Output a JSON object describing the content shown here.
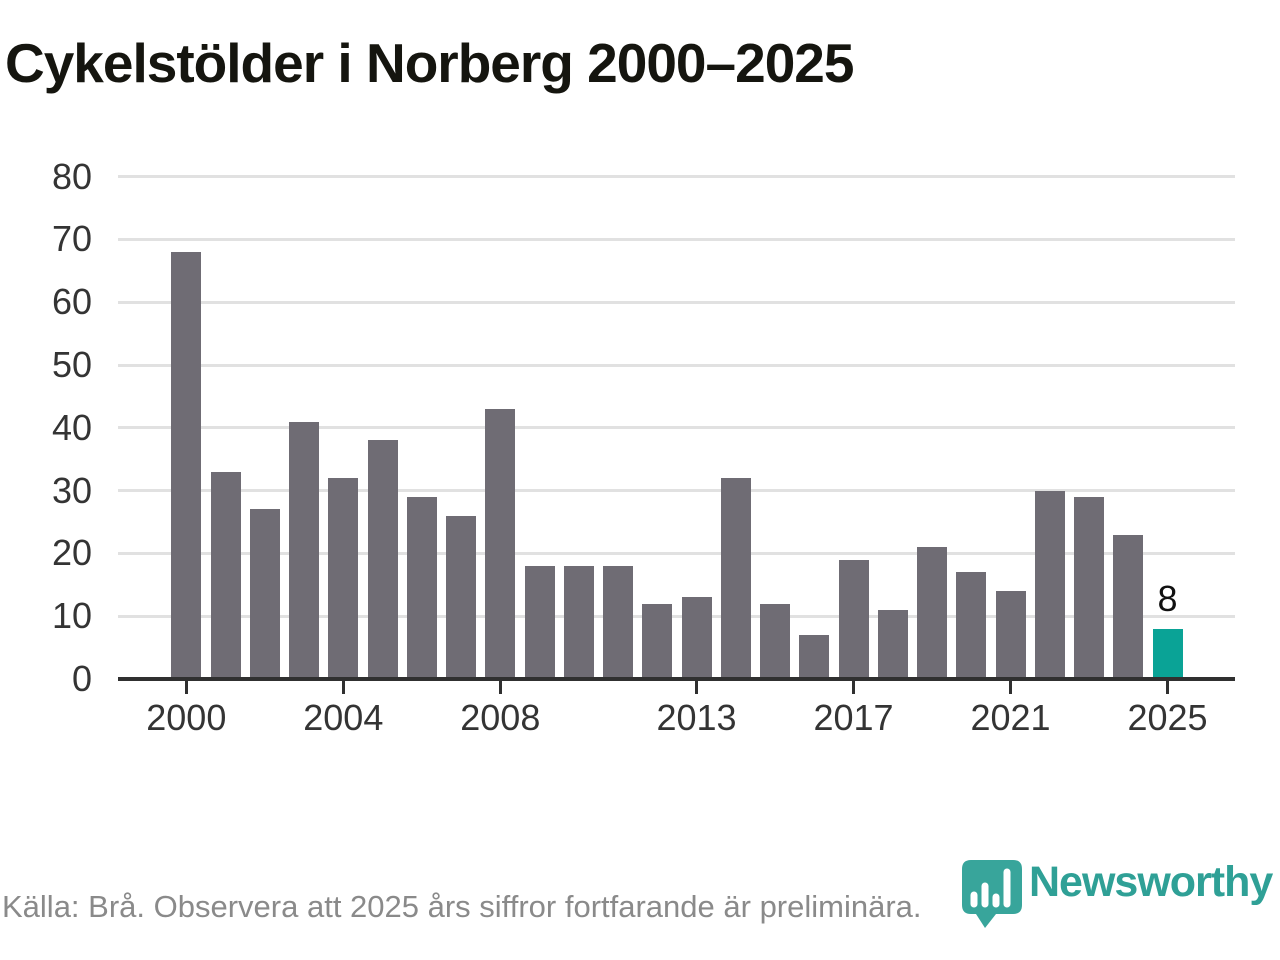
{
  "chart_data": {
    "type": "bar",
    "title": "Cykelstölder i Norberg 2000–2025",
    "x": [
      2000,
      2001,
      2002,
      2003,
      2004,
      2005,
      2006,
      2007,
      2008,
      2009,
      2010,
      2011,
      2012,
      2013,
      2014,
      2015,
      2016,
      2017,
      2018,
      2019,
      2020,
      2021,
      2022,
      2023,
      2024,
      2025
    ],
    "values": [
      68,
      33,
      27,
      41,
      32,
      38,
      29,
      26,
      43,
      18,
      18,
      18,
      12,
      13,
      32,
      12,
      7,
      19,
      11,
      21,
      17,
      14,
      30,
      29,
      23,
      8
    ],
    "highlight_year": 2025,
    "highlight_label": "8",
    "ylim": [
      0,
      80
    ],
    "yticks": [
      0,
      10,
      20,
      30,
      40,
      50,
      60,
      70,
      80
    ],
    "xticks": [
      2000,
      2004,
      2008,
      2013,
      2017,
      2021,
      2025
    ],
    "grid": "horizontal",
    "legend": "none",
    "colors": {
      "bar": "#6F6C74",
      "highlight": "#0AA396",
      "gridline": "#E1E1E1",
      "axis": "#303030",
      "tick_label": "#343434",
      "title": "#15150F",
      "annotation": "#111111"
    }
  },
  "footer": {
    "source_text": "Källa: Brå. Observera att 2025 års siffror fortfarande är preliminära.",
    "text_color": "#8A8A8A",
    "logo_text": "Newsworthy",
    "logo_color": "#2FA096",
    "pin_color": "#38A59B"
  }
}
